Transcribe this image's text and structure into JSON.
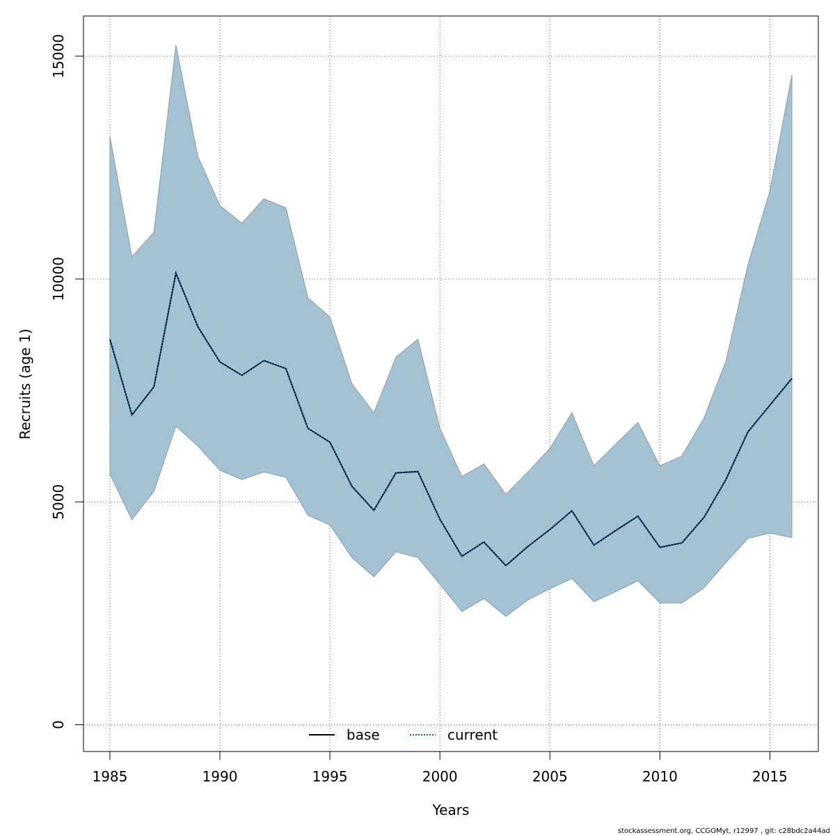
{
  "chart_data": {
    "type": "line",
    "xlabel": "Years",
    "ylabel": "Recruits (age 1)",
    "xlim": [
      1983.8,
      2017.2
    ],
    "ylim": [
      -600,
      15900
    ],
    "x_ticks": [
      1985,
      1990,
      1995,
      2000,
      2005,
      2010,
      2015
    ],
    "y_ticks": [
      0,
      5000,
      10000,
      15000
    ],
    "grid": true,
    "x": [
      1985,
      1986,
      1987,
      1988,
      1989,
      1990,
      1991,
      1992,
      1993,
      1994,
      1995,
      1996,
      1997,
      1998,
      1999,
      2000,
      2001,
      2002,
      2003,
      2004,
      2005,
      2006,
      2007,
      2008,
      2009,
      2010,
      2011,
      2012,
      2013,
      2014,
      2015,
      2016
    ],
    "band": {
      "upper": [
        13200,
        10500,
        11050,
        15250,
        12750,
        11650,
        11250,
        11800,
        11600,
        9580,
        9150,
        7650,
        7000,
        8250,
        8650,
        6650,
        5570,
        5850,
        5170,
        5670,
        6200,
        7000,
        5810,
        6300,
        6780,
        5810,
        6030,
        6880,
        8160,
        10320,
        11980,
        14580
      ],
      "lower": [
        5620,
        4600,
        5230,
        6700,
        6250,
        5710,
        5500,
        5670,
        5550,
        4700,
        4480,
        3750,
        3320,
        3880,
        3750,
        3150,
        2540,
        2830,
        2430,
        2800,
        3050,
        3280,
        2760,
        2990,
        3230,
        2730,
        2730,
        3070,
        3640,
        4180,
        4300,
        4200
      ],
      "color": "#a3c3d5",
      "edge_color": "#8c9ba3"
    },
    "series": [
      {
        "name": "base",
        "style": "solid",
        "color": "#000000",
        "values": [
          8650,
          6950,
          7580,
          10130,
          8930,
          8140,
          7840,
          8170,
          7990,
          6650,
          6340,
          5350,
          4810,
          5650,
          5680,
          4610,
          3780,
          4100,
          3570,
          4000,
          4380,
          4800,
          4030,
          4360,
          4680,
          3980,
          4080,
          4650,
          5500,
          6570,
          7170,
          7770
        ]
      },
      {
        "name": "current",
        "style": "dotted",
        "color": "#0b62a3",
        "values": [
          8650,
          6950,
          7580,
          10130,
          8930,
          8140,
          7840,
          8170,
          7990,
          6650,
          6340,
          5350,
          4810,
          5650,
          5680,
          4610,
          3780,
          4100,
          3570,
          4000,
          4380,
          4800,
          4030,
          4360,
          4680,
          3980,
          4080,
          4650,
          5500,
          6570,
          7170,
          7770
        ]
      }
    ],
    "legend_position": "bottom-center"
  },
  "footer_text": "stockassessment.org, CCGOMyt, r12997 , git: c28bdc2a44ad"
}
